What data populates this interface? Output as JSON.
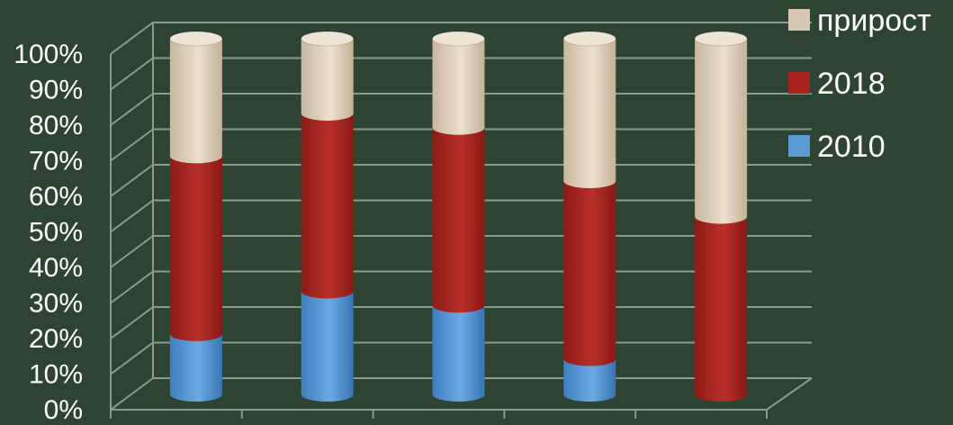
{
  "chart_data": {
    "type": "bar",
    "stacked": "percent",
    "style": "3d-cylinder",
    "categories": [
      "",
      "",
      "",
      "",
      ""
    ],
    "series": [
      {
        "name": "2010",
        "color": "#5b9bd5",
        "values": [
          17,
          29,
          25,
          10,
          0
        ]
      },
      {
        "name": "2018",
        "color": "#a8221d",
        "values": [
          50,
          50,
          50,
          50,
          50
        ]
      },
      {
        "name": "прирост",
        "color": "#d8c8b3",
        "values": [
          33,
          21,
          25,
          40,
          50
        ]
      }
    ],
    "yticks": [
      "0%",
      "10%",
      "20%",
      "30%",
      "40%",
      "50%",
      "60%",
      "70%",
      "80%",
      "90%",
      "100%"
    ],
    "ylim": [
      0,
      100
    ],
    "grid": true,
    "legend": "top-right",
    "legend_order": [
      "прирост",
      "2018",
      "2010"
    ]
  }
}
